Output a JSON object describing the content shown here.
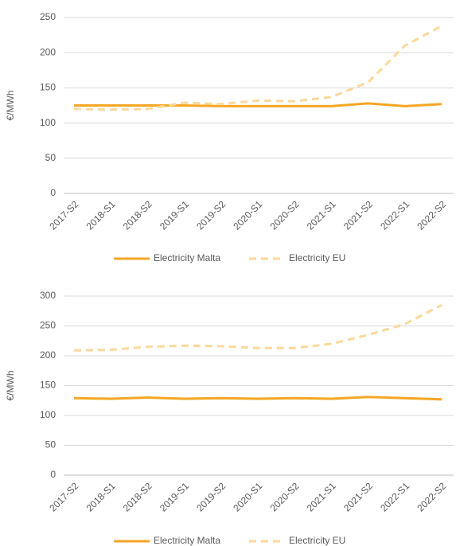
{
  "chart_data": [
    {
      "type": "line",
      "ylabel": "€/MWh",
      "categories": [
        "2017-S2",
        "2018-S1",
        "2018-S2",
        "2019-S1",
        "2019-S2",
        "2020-S1",
        "2020-S2",
        "2021-S1",
        "2021-S2",
        "2022-S1",
        "2022-S2"
      ],
      "series": [
        {
          "name": "Electricity Malta",
          "color": "#f5a623",
          "dash": false,
          "values": [
            125,
            125,
            125,
            125,
            124,
            124,
            124,
            124,
            128,
            124,
            127
          ]
        },
        {
          "name": "Electricity EU",
          "color": "#fbd99a",
          "dash": true,
          "values": [
            120,
            119,
            120,
            129,
            127,
            132,
            131,
            137,
            158,
            210,
            238
          ]
        }
      ],
      "ylim": [
        0,
        250
      ],
      "yticks": [
        0,
        50,
        100,
        150,
        200,
        250
      ],
      "grid": true,
      "legend": "bottom"
    },
    {
      "type": "line",
      "ylabel": "€/MWh",
      "categories": [
        "2017-S2",
        "2018-S1",
        "2018-S2",
        "2019-S1",
        "2019-S2",
        "2020-S1",
        "2020-S2",
        "2021-S1",
        "2021-S2",
        "2022-S1",
        "2022-S2"
      ],
      "series": [
        {
          "name": "Electricity Malta",
          "color": "#f5a623",
          "dash": false,
          "values": [
            129,
            128,
            130,
            128,
            129,
            128,
            129,
            128,
            131,
            129,
            127
          ]
        },
        {
          "name": "Electricity EU",
          "color": "#fbd99a",
          "dash": true,
          "values": [
            209,
            210,
            215,
            217,
            216,
            213,
            213,
            220,
            235,
            253,
            285
          ]
        }
      ],
      "ylim": [
        0,
        300
      ],
      "yticks": [
        0,
        50,
        100,
        150,
        200,
        250,
        300
      ],
      "grid": true,
      "legend": "bottom"
    }
  ]
}
